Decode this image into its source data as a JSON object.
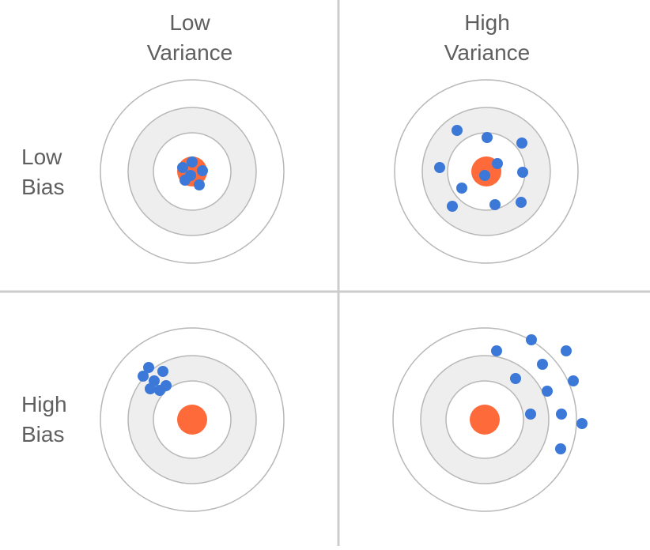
{
  "columns": [
    {
      "line1": "Low",
      "line2": "Variance"
    },
    {
      "line1": "High",
      "line2": "Variance"
    }
  ],
  "rows": [
    {
      "line1": "Low",
      "line2": "Bias"
    },
    {
      "line1": "High",
      "line2": "Bias"
    }
  ],
  "colors": {
    "ring_stroke": "#b7b7b7",
    "ring_fill": "#eeeeee",
    "bullseye": "#ff6a3a",
    "shot": "#3c78d8",
    "divider": "#cccccc"
  },
  "targets": [
    {
      "name": "low-bias-low-variance"
    },
    {
      "name": "low-bias-high-variance"
    },
    {
      "name": "high-bias-low-variance"
    },
    {
      "name": "high-bias-high-variance"
    }
  ]
}
